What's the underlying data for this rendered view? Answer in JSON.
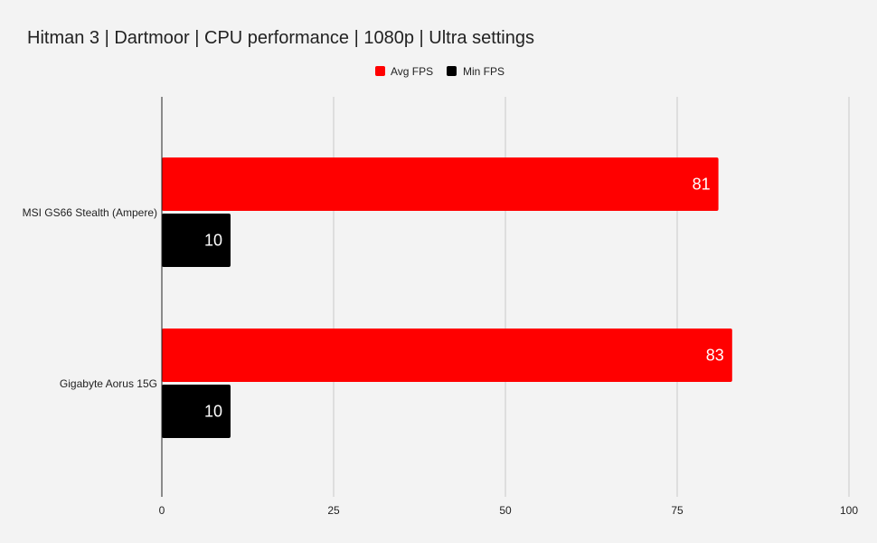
{
  "chart_data": {
    "type": "bar",
    "orientation": "horizontal",
    "title": "Hitman 3 | Dartmoor | CPU performance | 1080p | Ultra settings",
    "categories": [
      "MSI GS66 Stealth (Ampere)",
      "Gigabyte Aorus 15G"
    ],
    "series": [
      {
        "name": "Avg FPS",
        "color": "#ff0000",
        "values": [
          81,
          83
        ]
      },
      {
        "name": "Min FPS",
        "color": "#000000",
        "values": [
          10,
          10
        ]
      }
    ],
    "xlim": [
      0,
      100
    ],
    "xticks": [
      0,
      25,
      50,
      75,
      100
    ],
    "grid": true,
    "legend": "top-center",
    "data_label_color": "#ffffff",
    "gridline_color": "#c8c8c8",
    "axis_color": "#222222"
  }
}
